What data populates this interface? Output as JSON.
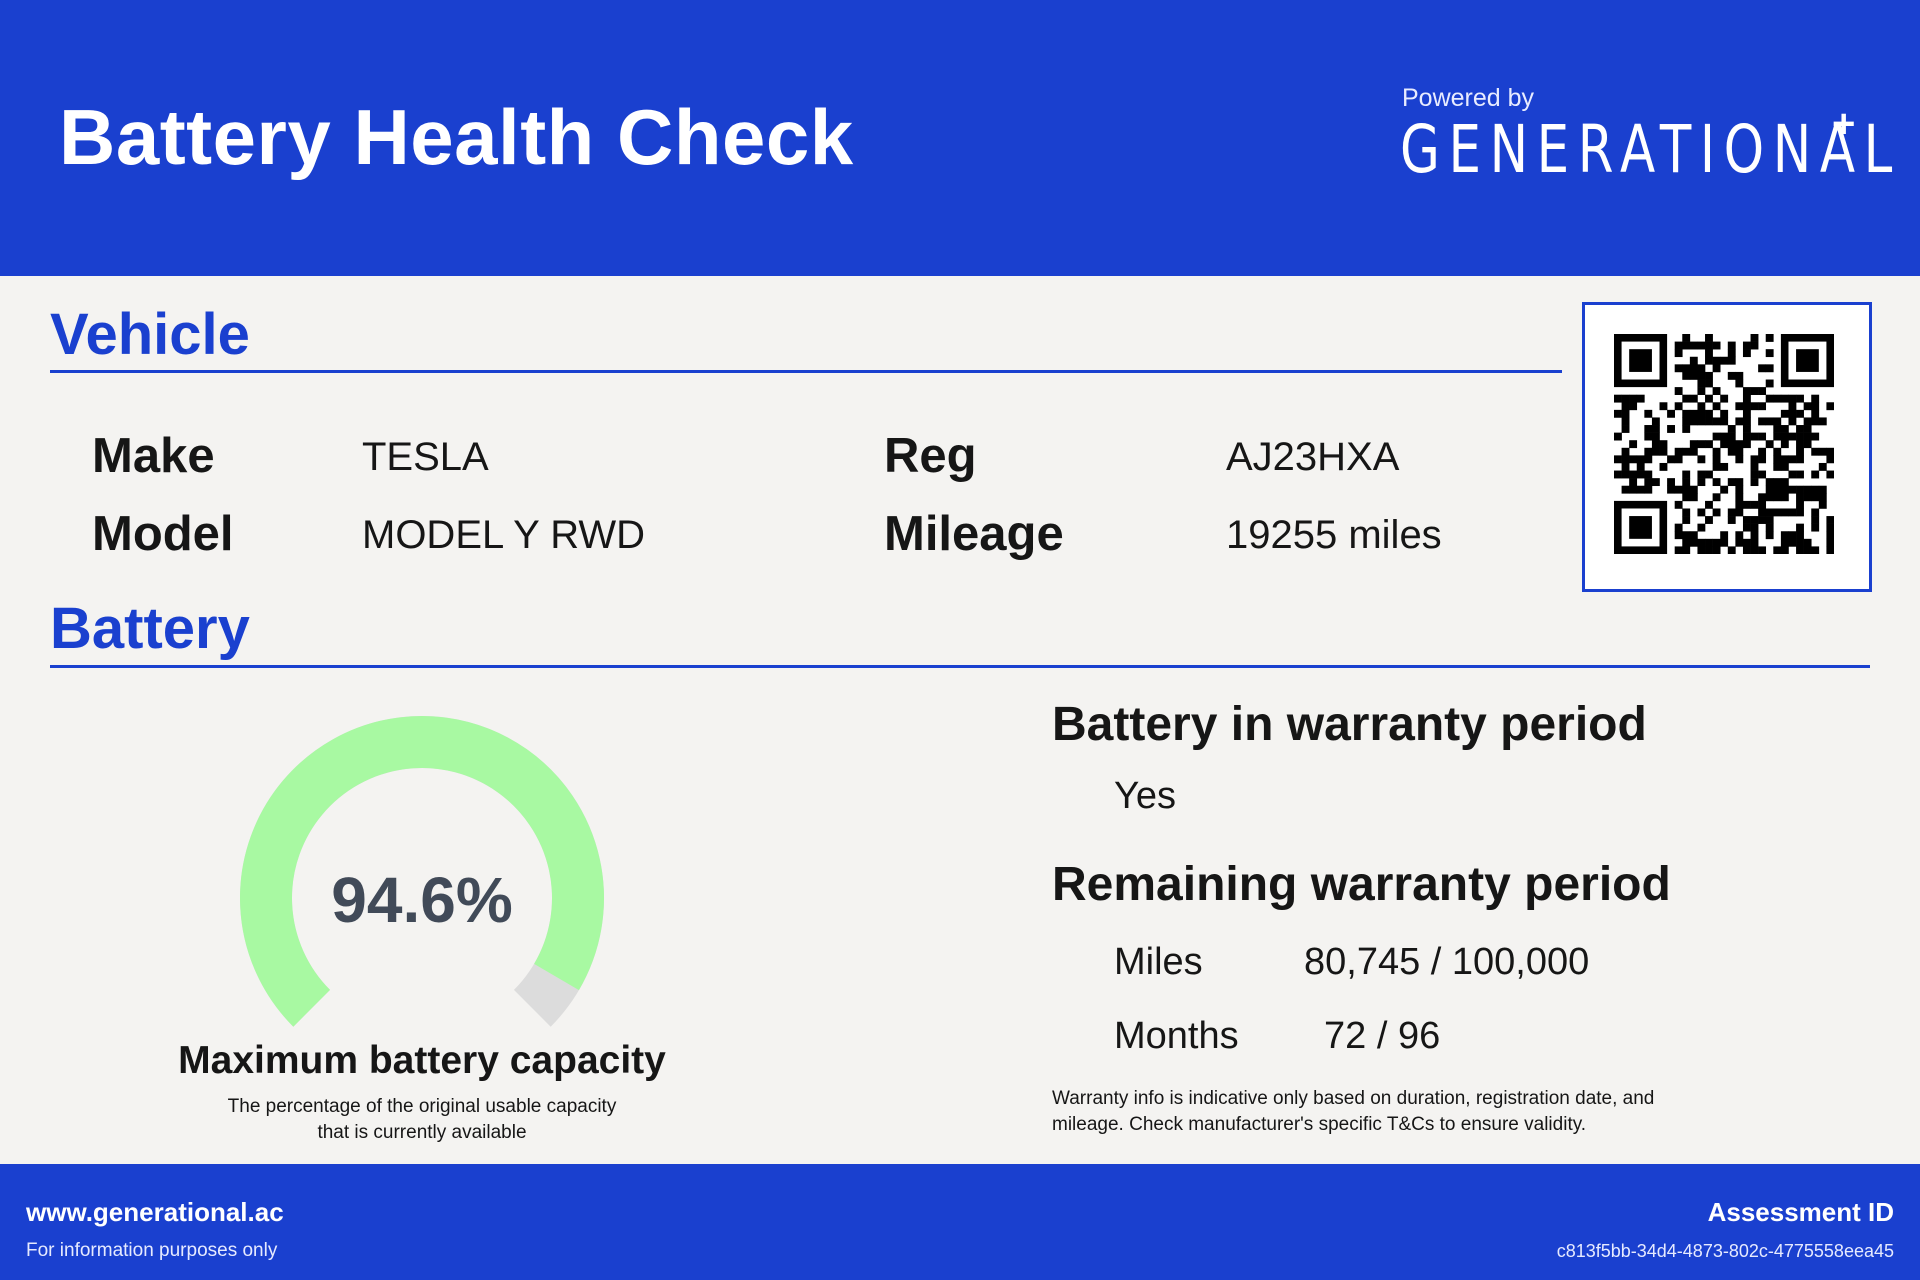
{
  "header": {
    "title": "Battery Health Check",
    "powered_by": "Powered by",
    "brand": "GENERATIONAL",
    "brand_mark": "+"
  },
  "vehicle": {
    "section_title": "Vehicle",
    "make_label": "Make",
    "make_value": "TESLA",
    "model_label": "Model",
    "model_value": "MODEL Y RWD",
    "reg_label": "Reg",
    "reg_value": "AJ23HXA",
    "mileage_label": "Mileage",
    "mileage_value": "19255 miles",
    "qr_icon": "qr-code-icon"
  },
  "battery": {
    "section_title": "Battery",
    "capacity_display": "94.6%",
    "capacity_percent": 94.6,
    "capacity_title": "Maximum battery capacity",
    "capacity_desc_line1": "The percentage of the original usable capacity",
    "capacity_desc_line2": "that is currently available",
    "warranty_heading": "Battery in warranty period",
    "warranty_value": "Yes",
    "remaining_heading": "Remaining warranty period",
    "miles_label": "Miles",
    "miles_value": "80,745 / 100,000",
    "months_label": "Months",
    "months_value": "72 / 96",
    "disclaimer_line1": "Warranty info is indicative only based on duration, registration date, and",
    "disclaimer_line2": "mileage. Check manufacturer's specific T&Cs to ensure validity."
  },
  "colors": {
    "brand_blue": "#1a40cf",
    "gauge_fill": "#a8f9a2",
    "gauge_empty": "#dcdcdc",
    "gauge_text": "#414a58"
  },
  "footer": {
    "url": "www.generational.ac",
    "note": "For information purposes only",
    "assessment_label": "Assessment ID",
    "assessment_id": "c813f5bb-34d4-4873-802c-4775558eea45"
  }
}
